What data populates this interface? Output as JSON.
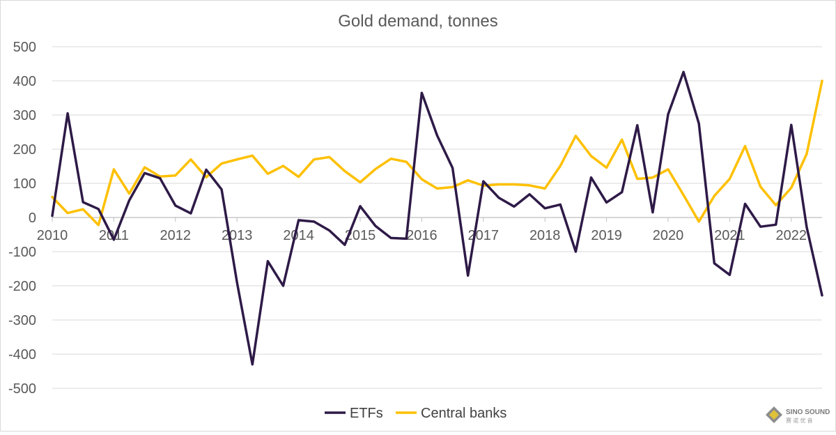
{
  "chart_data": {
    "type": "line",
    "title": "Gold demand, tonnes",
    "xlabel": "",
    "ylabel": "",
    "ylim": [
      -500,
      500
    ],
    "y_ticks": [
      500,
      400,
      300,
      200,
      100,
      0,
      -100,
      -200,
      -300,
      -400,
      -500
    ],
    "x_tick_labels": [
      "2010",
      "2011",
      "2012",
      "2013",
      "2014",
      "2015",
      "2016",
      "2017",
      "2018",
      "2019",
      "2020",
      "2021",
      "2022"
    ],
    "points_per_year": 4,
    "legend_position": "bottom",
    "series": [
      {
        "name": "ETFs",
        "color": "#2e1a47",
        "values": [
          5,
          305,
          45,
          25,
          -65,
          50,
          130,
          115,
          35,
          12,
          140,
          82,
          -190,
          -430,
          -128,
          -200,
          -8,
          -12,
          -38,
          -80,
          33,
          -25,
          -60,
          -62,
          365,
          240,
          145,
          -170,
          106,
          58,
          32,
          68,
          27,
          38,
          -100,
          117,
          44,
          74,
          270,
          15,
          302,
          426,
          275,
          -134,
          -168,
          40,
          -27,
          -21,
          271,
          -28,
          -228
        ]
      },
      {
        "name": "Central banks",
        "color": "#fec000",
        "values": [
          60,
          13,
          24,
          -22,
          141,
          70,
          147,
          120,
          123,
          170,
          118,
          158,
          170,
          181,
          128,
          151,
          119,
          170,
          177,
          136,
          103,
          142,
          172,
          163,
          112,
          85,
          89,
          109,
          93,
          97,
          97,
          94,
          85,
          151,
          239,
          180,
          146,
          228,
          113,
          117,
          141,
          66,
          -12,
          63,
          113,
          209,
          90,
          36,
          87,
          186,
          400
        ]
      }
    ]
  },
  "watermark": {
    "brand": "SINO SOUND",
    "sub": "赛 诺 优 音"
  }
}
